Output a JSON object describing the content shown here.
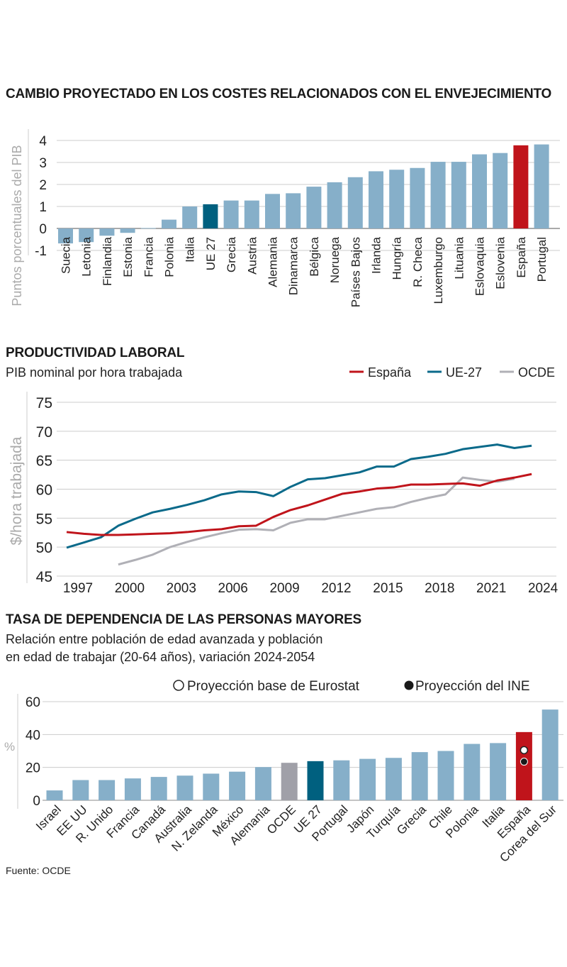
{
  "chart_data": [
    {
      "type": "bar",
      "title": "CAMBIO PROYECTADO EN LOS COSTES RELACIONADOS CON EL ENVEJECIMIENTO",
      "ylabel": "Puntos porcentuales del PIB",
      "ylim": [
        -1,
        4
      ],
      "yticks": [
        "4",
        "3",
        "2",
        "1",
        "0",
        "-1"
      ],
      "grid": true,
      "categories": [
        "Suecia",
        "Letonia",
        "Finlandia",
        "Estonia",
        "Francia",
        "Polonia",
        "Italia",
        "UE 27",
        "Grecia",
        "Austria",
        "Alemania",
        "Dinamarca",
        "Bélgica",
        "Noruega",
        "Países Bajos",
        "Irlanda",
        "Hungría",
        "R. Checa",
        "Luxemburgo",
        "Lituania",
        "Eslovaquia",
        "Eslovenia",
        "España",
        "Portugal"
      ],
      "values": [
        -0.68,
        -0.62,
        -0.33,
        -0.2,
        0.02,
        0.4,
        1.0,
        1.1,
        1.27,
        1.27,
        1.57,
        1.6,
        1.9,
        2.1,
        2.33,
        2.6,
        2.67,
        2.75,
        3.03,
        3.03,
        3.37,
        3.43,
        3.78,
        3.82
      ],
      "highlight": {
        "UE 27": "#00607f",
        "España": "#c0141b"
      },
      "bar_color": "#86afc9"
    },
    {
      "type": "line",
      "title": "PRODUCTIVIDAD LABORAL",
      "subtitle": "PIB nominal por hora trabajada",
      "ylabel": "$/hora trabajada",
      "ylim": [
        45,
        75
      ],
      "yticks": [
        "75",
        "70",
        "65",
        "60",
        "55",
        "50",
        "45"
      ],
      "xticks": [
        "1997",
        "2000",
        "2003",
        "2006",
        "2009",
        "2012",
        "2015",
        "2018",
        "2021",
        "2024"
      ],
      "grid": true,
      "legend": "top-right",
      "series": [
        {
          "name": "España",
          "color": "#c0141b",
          "x": [
            1997,
            1998,
            1999,
            2000,
            2001,
            2002,
            2003,
            2004,
            2005,
            2006,
            2007,
            2008,
            2009,
            2010,
            2011,
            2012,
            2013,
            2014,
            2015,
            2016,
            2017,
            2018,
            2019,
            2020,
            2021,
            2022,
            2023,
            2024
          ],
          "values": [
            52.6,
            52.3,
            52.1,
            52.1,
            52.2,
            52.3,
            52.4,
            52.6,
            52.9,
            53.1,
            53.6,
            53.7,
            55.2,
            56.4,
            57.2,
            58.2,
            59.2,
            59.6,
            60.1,
            60.3,
            60.8,
            60.8,
            60.9,
            61.0,
            60.6,
            61.5,
            62.0,
            62.6
          ]
        },
        {
          "name": "UE-27",
          "color": "#0b6a8a",
          "x": [
            1997,
            1998,
            1999,
            2000,
            2001,
            2002,
            2003,
            2004,
            2005,
            2006,
            2007,
            2008,
            2009,
            2010,
            2011,
            2012,
            2013,
            2014,
            2015,
            2016,
            2017,
            2018,
            2019,
            2020,
            2021,
            2022,
            2023,
            2024
          ],
          "values": [
            49.9,
            50.8,
            51.7,
            53.7,
            54.9,
            56.0,
            56.6,
            57.3,
            58.1,
            59.1,
            59.6,
            59.5,
            58.8,
            60.4,
            61.7,
            61.9,
            62.4,
            62.9,
            63.9,
            63.9,
            65.2,
            65.6,
            66.1,
            66.9,
            67.3,
            67.7,
            67.1,
            67.5
          ]
        },
        {
          "name": "OCDE",
          "color": "#b0b0b6",
          "x": [
            2000,
            2001,
            2002,
            2003,
            2004,
            2005,
            2006,
            2007,
            2008,
            2009,
            2010,
            2011,
            2012,
            2013,
            2014,
            2015,
            2016,
            2017,
            2018,
            2019,
            2020,
            2021,
            2022,
            2023
          ],
          "values": [
            47.0,
            47.8,
            48.7,
            50.0,
            50.9,
            51.7,
            52.4,
            53.0,
            53.1,
            52.9,
            54.2,
            54.8,
            54.8,
            55.4,
            56.0,
            56.6,
            56.9,
            57.8,
            58.5,
            59.1,
            62.0,
            61.6,
            61.3,
            61.8
          ]
        }
      ]
    },
    {
      "type": "bar",
      "title": "TASA DE DEPENDENCIA DE LAS PERSONAS MAYORES",
      "subtitle_lines": [
        "Relación entre población de edad avanzada y población",
        "en edad de trabajar (20-64 años), variación 2024-2054"
      ],
      "ylabel": "%",
      "ylim": [
        0,
        60
      ],
      "yticks": [
        "60",
        "40",
        "20",
        "0"
      ],
      "grid": true,
      "legend": "top-right",
      "legend_items": [
        "Proyección base de Eurostat",
        "Proyección del INE"
      ],
      "categories": [
        "Israel",
        "EE UU",
        "R. Unido",
        "Francia",
        "Canadá",
        "Australia",
        "N. Zelanda",
        "México",
        "Alemania",
        "OCDE",
        "UE 27",
        "Portugal",
        "Japón",
        "Turquía",
        "Grecia",
        "Chile",
        "Polonia",
        "Italia",
        "España",
        "Corea del Sur"
      ],
      "values": [
        6,
        12.3,
        12.3,
        13.3,
        14.2,
        15,
        16.2,
        17.4,
        20.2,
        22.8,
        23.8,
        24.3,
        25.2,
        25.8,
        29.3,
        30,
        34.3,
        34.8,
        41.5,
        55.2
      ],
      "highlight": {
        "OCDE": "#a0a0a8",
        "UE 27": "#00607f",
        "España": "#c0141b"
      },
      "bar_color": "#86afc9",
      "markers": {
        "category": "España",
        "eurostat": 30.5,
        "ine": 23.5
      }
    }
  ],
  "source": "Fuente: OCDE"
}
